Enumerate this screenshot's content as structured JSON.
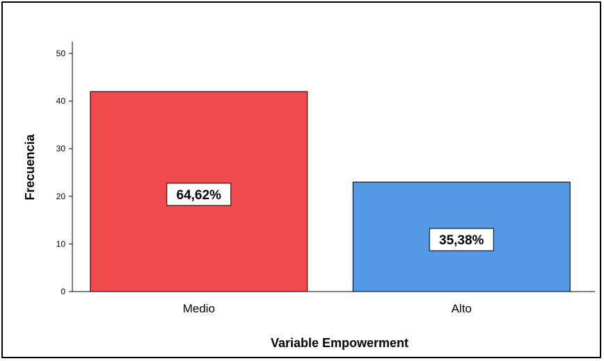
{
  "chart_data": {
    "type": "bar",
    "categories": [
      "Medio",
      "Alto"
    ],
    "values": [
      42,
      23
    ],
    "data_labels": [
      "64,62%",
      "35,38%"
    ],
    "colors": [
      "#ef4b4f",
      "#5497e3"
    ],
    "title": "",
    "xlabel": "Variable Empowerment",
    "ylabel": "Frecuencia",
    "ylim": [
      0,
      50
    ],
    "yticks": [
      "0",
      "10",
      "20",
      "30",
      "40",
      "50"
    ],
    "grid": false
  }
}
